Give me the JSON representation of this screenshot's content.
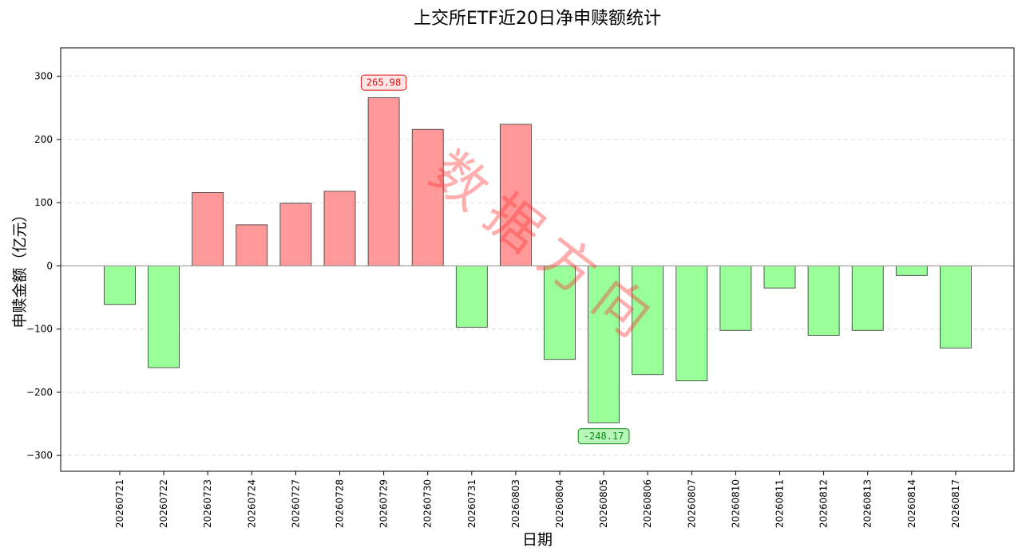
{
  "chart_data": {
    "type": "bar",
    "title": "上交所ETF近20日净申赎额统计",
    "xlabel": "日期",
    "ylabel": "申赎金额（亿元）",
    "categories": [
      "20260721",
      "20260722",
      "20260723",
      "20260724",
      "20260727",
      "20260728",
      "20260729",
      "20260730",
      "20260731",
      "20260803",
      "20260804",
      "20260805",
      "20260806",
      "20260807",
      "20260810",
      "20260811",
      "20260812",
      "20260813",
      "20260814",
      "20260817"
    ],
    "values": [
      -61,
      -161,
      116,
      65,
      99,
      118,
      265.98,
      216,
      -97,
      224,
      -148,
      -248.17,
      -172,
      -182,
      -102,
      -35,
      -110,
      -102,
      -15,
      -130
    ],
    "ylim": [
      -325,
      345
    ],
    "yticks": [
      -300,
      -200,
      -100,
      0,
      100,
      200,
      300
    ],
    "grid": true,
    "colors": {
      "positive": "#ff9999",
      "negative": "#99ff99",
      "edge": "#333333",
      "grid": "#dddddd",
      "zeroline": "#999999"
    },
    "annotations": [
      {
        "category": "20260729",
        "label": "265.98",
        "color": "#dd1111",
        "bg": "#ffe6e6",
        "position": "above"
      },
      {
        "category": "20260805",
        "label": "-248.17",
        "color": "#118811",
        "bg": "#b8f5b8",
        "position": "below"
      }
    ],
    "watermark": {
      "text": "数据方向",
      "color": "#ff3333"
    }
  }
}
